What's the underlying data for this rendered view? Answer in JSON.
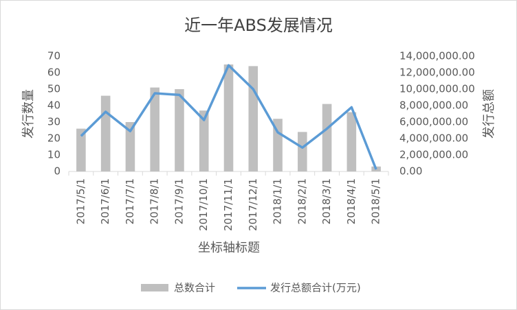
{
  "chart_data": {
    "type": "combo",
    "title": "近一年ABS发展情况",
    "x_label": "坐标轴标题",
    "y_label": "发行数量",
    "y2_label": "发行总额",
    "categories": [
      "2017/5/1",
      "2017/6/1",
      "2017/7/1",
      "2017/8/1",
      "2017/9/1",
      "2017/10/1",
      "2017/11/1",
      "2017/12/1",
      "2018/1/1",
      "2018/2/1",
      "2018/3/1",
      "2018/4/1",
      "2018/5/1"
    ],
    "series": [
      {
        "name": "总数合计",
        "type": "bar",
        "color": "#bfbfbf",
        "values": [
          26,
          46,
          30,
          51,
          50,
          37,
          65,
          64,
          32,
          24,
          41,
          36,
          3
        ]
      },
      {
        "name": "发行总额合计(万元)",
        "type": "line",
        "axis": "y2",
        "color": "#5b9bd5",
        "values": [
          4300000,
          7250000,
          4900000,
          9500000,
          9300000,
          6250000,
          12900000,
          10000000,
          4750000,
          2900000,
          5200000,
          7800000,
          250000
        ]
      }
    ],
    "ylim": [
      0,
      70
    ],
    "yticks": [
      0,
      10,
      20,
      30,
      40,
      50,
      60,
      70
    ],
    "y2lim": [
      0,
      14000000
    ],
    "y2ticks": [
      {
        "value": 0,
        "label": "0.00"
      },
      {
        "value": 2000000,
        "label": "2,000,000.00"
      },
      {
        "value": 4000000,
        "label": "4,000,000.00"
      },
      {
        "value": 6000000,
        "label": "6,000,000.00"
      },
      {
        "value": 8000000,
        "label": "8,000,000.00"
      },
      {
        "value": 10000000,
        "label": "10,000,000.00"
      },
      {
        "value": 12000000,
        "label": "12,000,000.00"
      },
      {
        "value": 14000000,
        "label": "14,000,000.00"
      }
    ],
    "grid": false,
    "legend": "bottom"
  }
}
